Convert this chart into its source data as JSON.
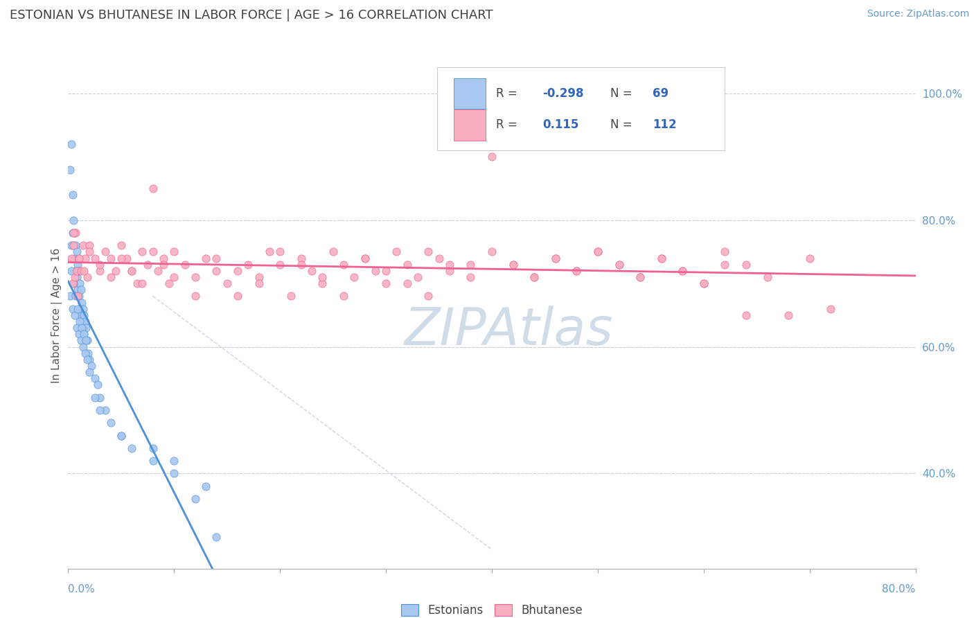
{
  "title": "ESTONIAN VS BHUTANESE IN LABOR FORCE | AGE > 16 CORRELATION CHART",
  "source_text": "Source: ZipAtlas.com",
  "ylabel": "In Labor Force | Age > 16",
  "legend_R1": "-0.298",
  "legend_N1": "69",
  "legend_R2": "0.115",
  "legend_N2": "112",
  "estonian_color": "#a8c8f0",
  "bhutanese_color": "#f8b0c0",
  "estonian_line_color": "#4a90d9",
  "bhutanese_line_color": "#f06090",
  "diagonal_color": "#c8d8e8",
  "background_color": "#ffffff",
  "grid_color": "#c8d0d8",
  "title_color": "#404040",
  "watermark_color": "#d0dce8",
  "axis_label_color": "#6699cc",
  "xlim": [
    0.0,
    0.8
  ],
  "ylim": [
    0.25,
    1.05
  ],
  "yright_tick_vals": [
    0.4,
    0.6,
    0.8,
    1.0
  ],
  "yright_tick_labels": [
    "40.0%",
    "60.0%",
    "80.0%",
    "100.0%"
  ],
  "estonian_x": [
    0.002,
    0.003,
    0.003,
    0.004,
    0.004,
    0.005,
    0.005,
    0.006,
    0.006,
    0.007,
    0.007,
    0.008,
    0.008,
    0.009,
    0.009,
    0.01,
    0.01,
    0.011,
    0.011,
    0.012,
    0.012,
    0.013,
    0.013,
    0.014,
    0.014,
    0.015,
    0.015,
    0.016,
    0.016,
    0.017,
    0.018,
    0.019,
    0.02,
    0.022,
    0.025,
    0.028,
    0.03,
    0.035,
    0.04,
    0.05,
    0.06,
    0.08,
    0.1,
    0.13,
    0.002,
    0.003,
    0.004,
    0.005,
    0.006,
    0.007,
    0.008,
    0.009,
    0.01,
    0.011,
    0.012,
    0.013,
    0.014,
    0.015,
    0.016,
    0.017,
    0.018,
    0.02,
    0.025,
    0.03,
    0.05,
    0.08,
    0.1,
    0.12,
    0.14
  ],
  "estonian_y": [
    0.88,
    0.92,
    0.76,
    0.84,
    0.78,
    0.8,
    0.76,
    0.78,
    0.74,
    0.76,
    0.72,
    0.75,
    0.71,
    0.73,
    0.69,
    0.72,
    0.68,
    0.7,
    0.66,
    0.69,
    0.65,
    0.67,
    0.64,
    0.66,
    0.63,
    0.65,
    0.62,
    0.64,
    0.61,
    0.63,
    0.61,
    0.59,
    0.58,
    0.57,
    0.55,
    0.54,
    0.52,
    0.5,
    0.48,
    0.46,
    0.44,
    0.42,
    0.4,
    0.38,
    0.68,
    0.72,
    0.66,
    0.7,
    0.65,
    0.68,
    0.63,
    0.66,
    0.62,
    0.64,
    0.61,
    0.63,
    0.6,
    0.62,
    0.59,
    0.61,
    0.58,
    0.56,
    0.52,
    0.5,
    0.46,
    0.44,
    0.42,
    0.36,
    0.3
  ],
  "bhutanese_x": [
    0.003,
    0.004,
    0.005,
    0.006,
    0.007,
    0.008,
    0.009,
    0.01,
    0.012,
    0.014,
    0.016,
    0.018,
    0.02,
    0.025,
    0.03,
    0.035,
    0.04,
    0.045,
    0.05,
    0.055,
    0.06,
    0.065,
    0.07,
    0.075,
    0.08,
    0.085,
    0.09,
    0.095,
    0.1,
    0.11,
    0.12,
    0.13,
    0.14,
    0.15,
    0.16,
    0.17,
    0.18,
    0.19,
    0.2,
    0.21,
    0.22,
    0.23,
    0.24,
    0.25,
    0.26,
    0.27,
    0.28,
    0.29,
    0.3,
    0.31,
    0.32,
    0.33,
    0.34,
    0.35,
    0.36,
    0.38,
    0.4,
    0.42,
    0.44,
    0.46,
    0.48,
    0.5,
    0.52,
    0.54,
    0.56,
    0.58,
    0.6,
    0.62,
    0.64,
    0.66,
    0.68,
    0.7,
    0.72,
    0.005,
    0.01,
    0.015,
    0.02,
    0.03,
    0.04,
    0.05,
    0.06,
    0.07,
    0.08,
    0.09,
    0.1,
    0.12,
    0.14,
    0.16,
    0.18,
    0.2,
    0.22,
    0.24,
    0.26,
    0.28,
    0.3,
    0.32,
    0.34,
    0.36,
    0.38,
    0.4,
    0.42,
    0.44,
    0.46,
    0.48,
    0.5,
    0.52,
    0.54,
    0.56,
    0.58,
    0.6,
    0.62,
    0.64
  ],
  "bhutanese_y": [
    0.74,
    0.7,
    0.76,
    0.71,
    0.78,
    0.72,
    0.68,
    0.74,
    0.72,
    0.76,
    0.74,
    0.71,
    0.76,
    0.74,
    0.72,
    0.75,
    0.74,
    0.72,
    0.76,
    0.74,
    0.72,
    0.7,
    0.75,
    0.73,
    0.85,
    0.72,
    0.74,
    0.7,
    0.75,
    0.73,
    0.71,
    0.74,
    0.72,
    0.7,
    0.68,
    0.73,
    0.71,
    0.75,
    0.73,
    0.68,
    0.74,
    0.72,
    0.7,
    0.75,
    0.73,
    0.71,
    0.74,
    0.72,
    0.7,
    0.75,
    0.73,
    0.71,
    0.68,
    0.74,
    0.72,
    0.73,
    0.75,
    0.73,
    0.71,
    0.74,
    0.72,
    0.75,
    0.73,
    0.71,
    0.74,
    0.72,
    0.7,
    0.75,
    0.73,
    0.71,
    0.65,
    0.74,
    0.66,
    0.78,
    0.74,
    0.72,
    0.75,
    0.73,
    0.71,
    0.74,
    0.72,
    0.7,
    0.75,
    0.73,
    0.71,
    0.68,
    0.74,
    0.72,
    0.7,
    0.75,
    0.73,
    0.71,
    0.68,
    0.74,
    0.72,
    0.7,
    0.75,
    0.73,
    0.71,
    0.9,
    0.73,
    0.71,
    0.74,
    0.72,
    0.75,
    0.73,
    0.71,
    0.74,
    0.72,
    0.7,
    0.73,
    0.65
  ]
}
